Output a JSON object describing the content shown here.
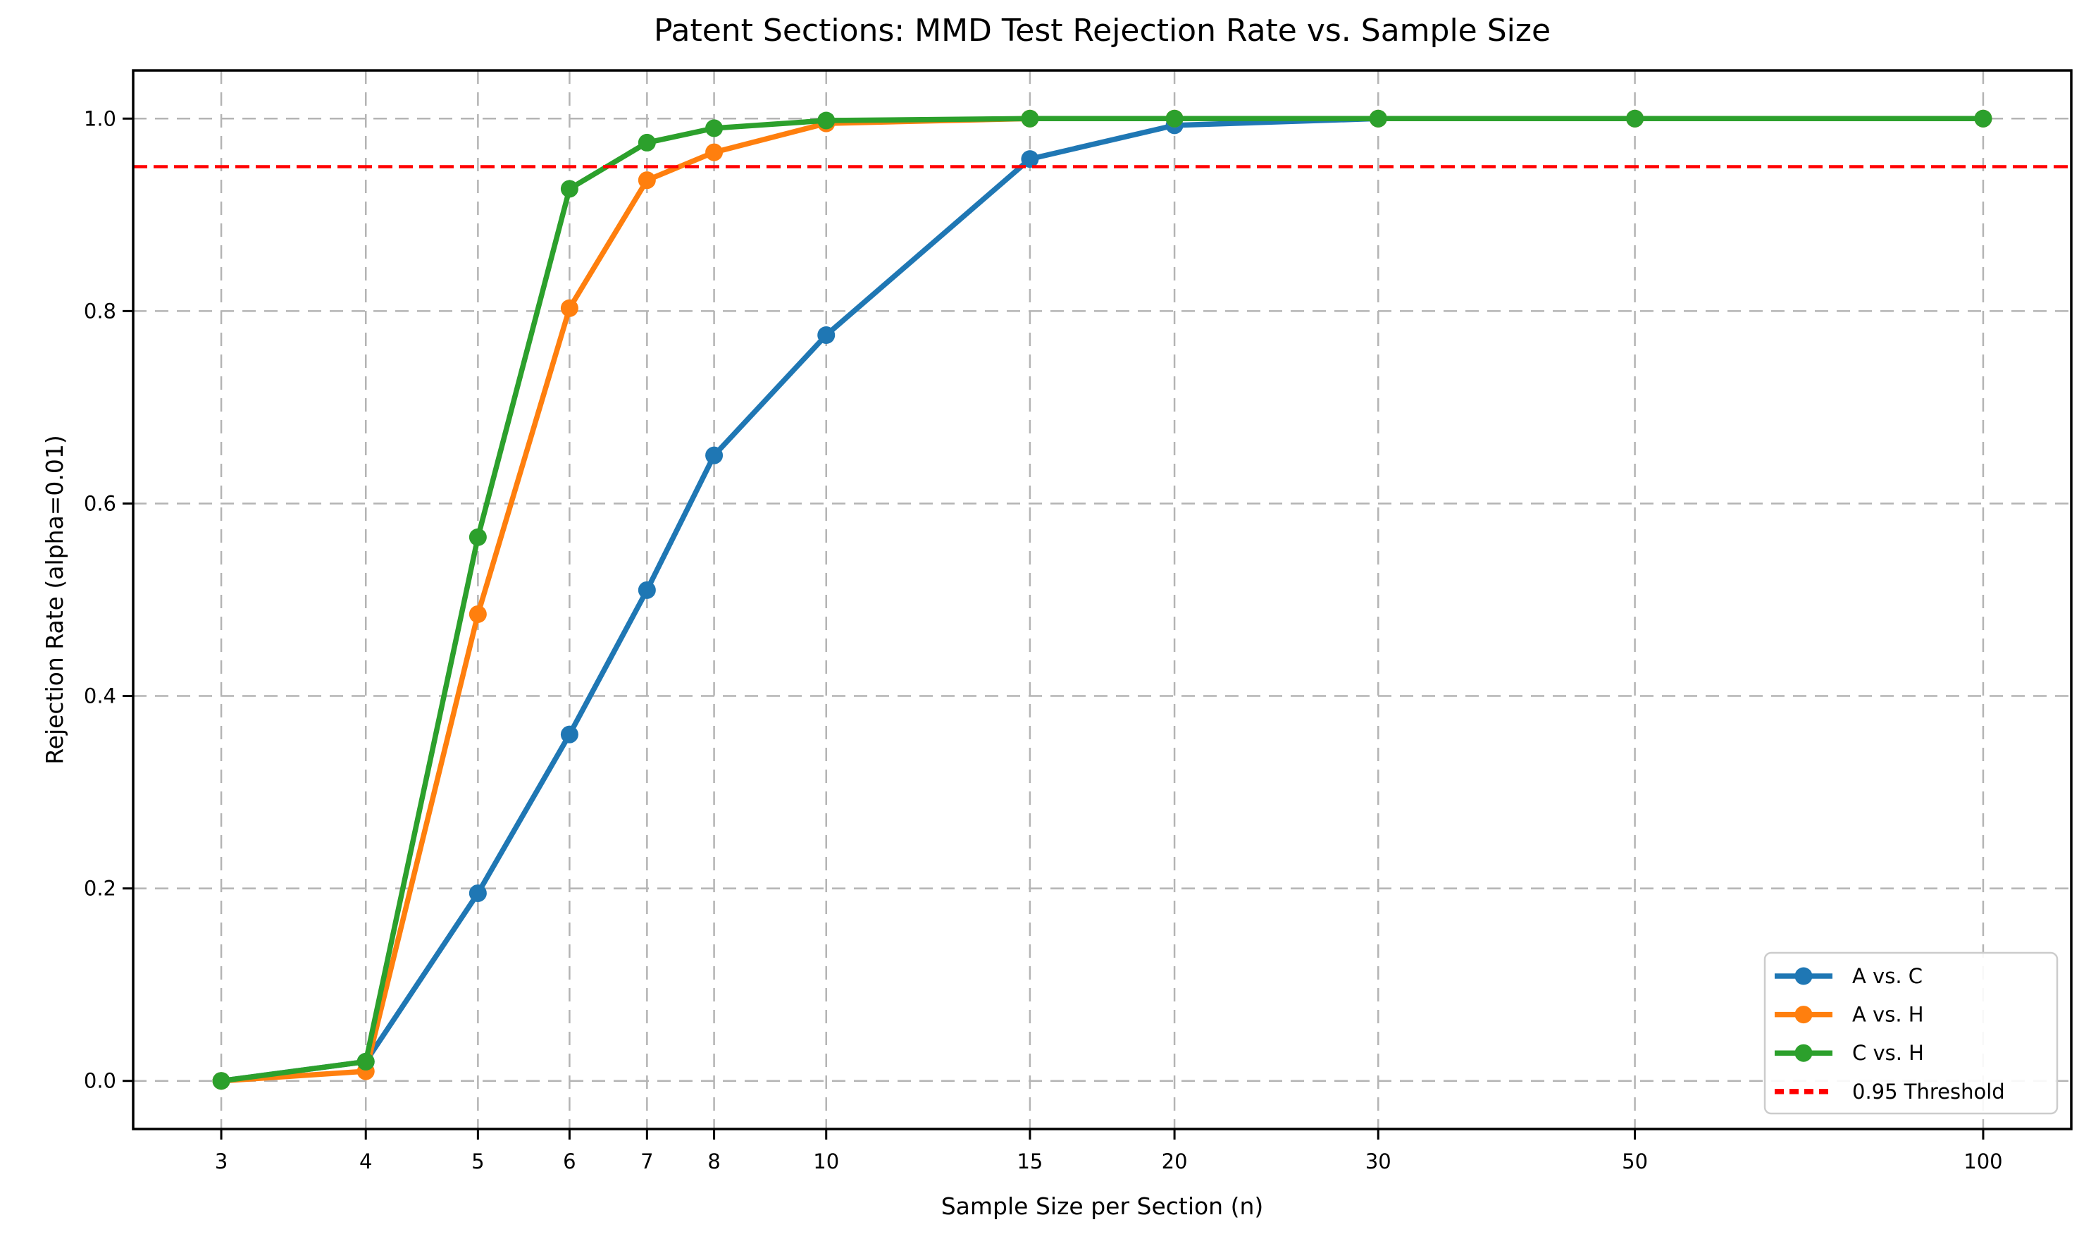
{
  "chart_data": {
    "type": "line",
    "title": "Patent Sections: MMD Test Rejection Rate vs. Sample Size",
    "xlabel": "Sample Size per Section (n)",
    "ylabel": "Rejection Rate (alpha=0.01)",
    "x_scale": "log",
    "grid": true,
    "legend_position": "lower right",
    "x": [
      3,
      4,
      5,
      6,
      7,
      8,
      10,
      15,
      20,
      30,
      50,
      100
    ],
    "xtick_labels": [
      "3",
      "4",
      "5",
      "6",
      "7",
      "8",
      "10",
      "15",
      "20",
      "30",
      "50",
      "100"
    ],
    "ytick_values": [
      0.0,
      0.2,
      0.4,
      0.6,
      0.8,
      1.0
    ],
    "ytick_labels": [
      "0.0",
      "0.2",
      "0.4",
      "0.6",
      "0.8",
      "1.0"
    ],
    "ylim": [
      -0.05,
      1.05
    ],
    "series": [
      {
        "name": "A vs. C",
        "color": "#1f77b4",
        "values": [
          0.0,
          0.02,
          0.195,
          0.36,
          0.51,
          0.65,
          0.775,
          0.958,
          0.993,
          1.0,
          1.0,
          1.0
        ]
      },
      {
        "name": "A vs. H",
        "color": "#ff7f0e",
        "values": [
          0.0,
          0.01,
          0.485,
          0.803,
          0.936,
          0.965,
          0.995,
          1.0,
          1.0,
          1.0,
          1.0,
          1.0
        ]
      },
      {
        "name": "C vs. H",
        "color": "#2ca02c",
        "values": [
          0.0,
          0.02,
          0.565,
          0.927,
          0.975,
          0.99,
          0.998,
          1.0,
          1.0,
          1.0,
          1.0,
          1.0
        ]
      }
    ],
    "threshold": {
      "label": "0.95 Threshold",
      "value": 0.95,
      "color": "#ff0000",
      "style": "dashed"
    }
  },
  "colors": {
    "background": "#ffffff",
    "grid": "#b4b4b4",
    "spine": "#000000",
    "tick_text": "#000000",
    "legend_border": "#cccccc",
    "legend_background": "#ffffff"
  }
}
